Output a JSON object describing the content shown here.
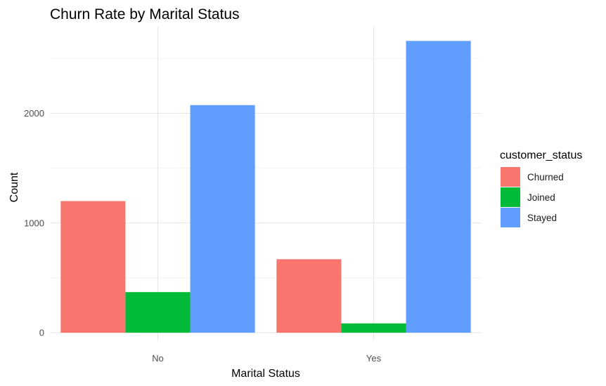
{
  "chart_data": {
    "type": "bar",
    "title": "Churn Rate by Marital Status",
    "xlabel": "Marital Status",
    "ylabel": "Count",
    "categories": [
      "No",
      "Yes"
    ],
    "series": [
      {
        "name": "Churned",
        "color": "#F8766D",
        "values": [
          1200,
          670
        ]
      },
      {
        "name": "Joined",
        "color": "#00BA38",
        "values": [
          370,
          85
        ]
      },
      {
        "name": "Stayed",
        "color": "#619CFF",
        "values": [
          2075,
          2660
        ]
      }
    ],
    "yticks": [
      0,
      1000,
      2000
    ],
    "ylim": [
      -70,
      2790
    ],
    "grid": true,
    "legend": {
      "title": "customer_status",
      "position": "right"
    }
  }
}
